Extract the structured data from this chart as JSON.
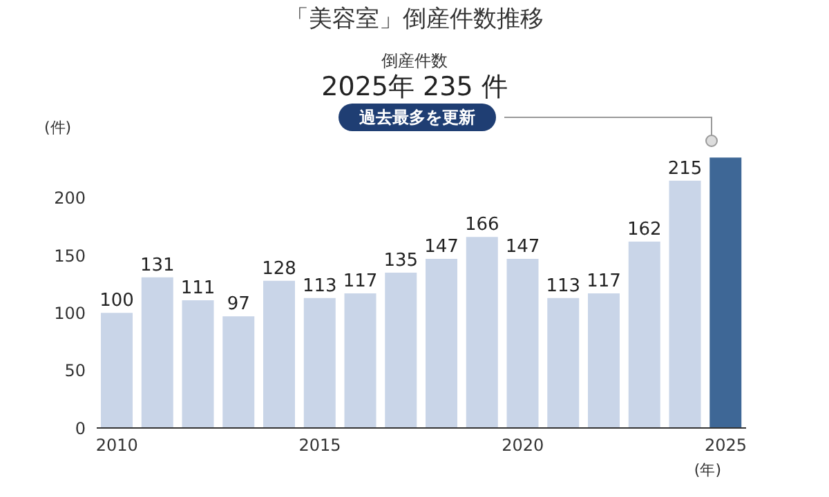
{
  "chart_data": {
    "type": "bar",
    "title": "「美容室」倒産件数推移",
    "ylabel": "(件)",
    "xlabel": "(年)",
    "categories": [
      "2010",
      null,
      null,
      null,
      null,
      "2015",
      null,
      null,
      null,
      null,
      "2020",
      null,
      null,
      null,
      null,
      "2025"
    ],
    "values": [
      100,
      131,
      111,
      97,
      128,
      113,
      117,
      135,
      147,
      166,
      147,
      113,
      117,
      162,
      215,
      235
    ],
    "colors": [
      "#c9d5e8",
      "#c9d5e8",
      "#c9d5e8",
      "#c9d5e8",
      "#c9d5e8",
      "#c9d5e8",
      "#c9d5e8",
      "#c9d5e8",
      "#c9d5e8",
      "#c9d5e8",
      "#c9d5e8",
      "#c9d5e8",
      "#c9d5e8",
      "#c9d5e8",
      "#c9d5e8",
      "#3e6796"
    ],
    "value_labels": [
      "100",
      "131",
      "111",
      "97",
      "128",
      "113",
      "117",
      "135",
      "147",
      "166",
      "147",
      "113",
      "117",
      "162",
      "215",
      null
    ],
    "annotations": [
      "倒産件数",
      "2025年 235 件",
      "過去最多を更新"
    ],
    "ylim": [
      0,
      240
    ],
    "yticks": [
      0,
      50,
      100,
      150,
      200
    ],
    "grid": false,
    "legend": false
  }
}
